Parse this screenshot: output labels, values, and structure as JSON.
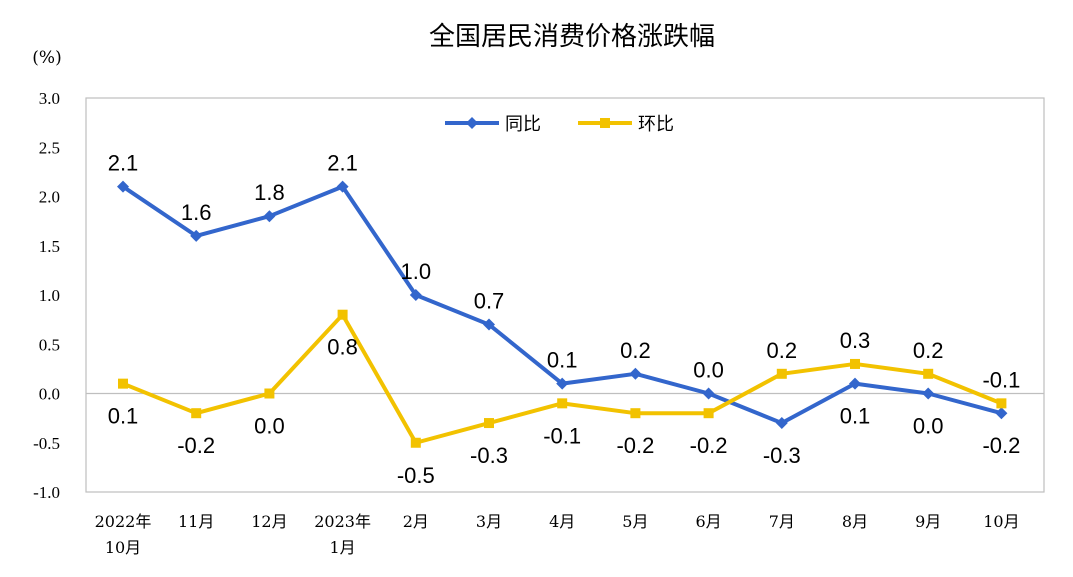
{
  "chart_data": {
    "type": "line",
    "title": "全国居民消费价格涨跌幅",
    "unit_label": "(%)",
    "ylim": [
      -1.0,
      3.0
    ],
    "y_ticks": [
      "3.0",
      "2.5",
      "2.0",
      "1.5",
      "1.0",
      "0.5",
      "0.0",
      "-0.5",
      "-1.0"
    ],
    "y_tick_values": [
      3.0,
      2.5,
      2.0,
      1.5,
      1.0,
      0.5,
      0.0,
      -0.5,
      -1.0
    ],
    "categories": [
      [
        "2022年",
        "10月"
      ],
      [
        "11月"
      ],
      [
        "12月"
      ],
      [
        "2023年",
        "1月"
      ],
      [
        "2月"
      ],
      [
        "3月"
      ],
      [
        "4月"
      ],
      [
        "5月"
      ],
      [
        "6月"
      ],
      [
        "7月"
      ],
      [
        "8月"
      ],
      [
        "9月"
      ],
      [
        "10月"
      ]
    ],
    "legend_position": "top-center",
    "series": [
      {
        "name": "同比",
        "color": "#3366CC",
        "marker": "diamond",
        "values": [
          2.1,
          1.6,
          1.8,
          2.1,
          1.0,
          0.7,
          0.1,
          0.2,
          0.0,
          -0.3,
          0.1,
          0.0,
          -0.2
        ],
        "labels": [
          "2.1",
          "1.6",
          "1.8",
          "2.1",
          "1.0",
          "0.7",
          "0.1",
          "0.2",
          "0.0",
          "-0.3",
          "0.1",
          "0.0",
          "-0.2"
        ]
      },
      {
        "name": "环比",
        "color": "#F2C200",
        "marker": "square",
        "values": [
          0.1,
          -0.2,
          0.0,
          0.8,
          -0.5,
          -0.3,
          -0.1,
          -0.2,
          -0.2,
          0.2,
          0.3,
          0.2,
          -0.1
        ],
        "labels": [
          "0.1",
          "-0.2",
          "0.0",
          "0.8",
          "-0.5",
          "-0.3",
          "-0.1",
          "-0.2",
          "-0.2",
          "0.2",
          "0.3",
          "0.2",
          "-0.1"
        ]
      }
    ]
  }
}
